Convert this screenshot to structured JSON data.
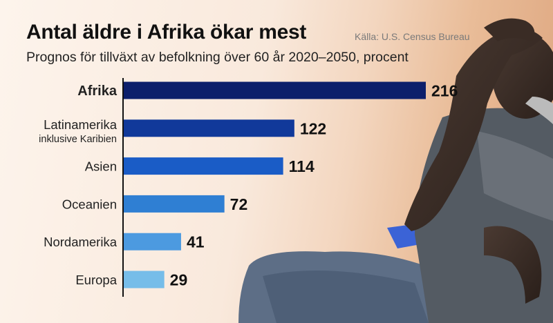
{
  "header": {
    "title": "Antal äldre i Afrika ökar mest",
    "source": "Källa: U.S. Census Bureau",
    "subtitle": "Prognos för tillväxt av befolkning över 60 år 2020–2050, procent"
  },
  "chart_data": {
    "type": "bar",
    "orientation": "horizontal",
    "categories": [
      "Afrika",
      "Latinamerika inklusive Karibien",
      "Asien",
      "Oceanien",
      "Nordamerika",
      "Europa"
    ],
    "category_lines": [
      [
        "Afrika"
      ],
      [
        "Latinamerika",
        "inklusive Karibien"
      ],
      [
        "Asien"
      ],
      [
        "Oceanien"
      ],
      [
        "Nordamerika"
      ],
      [
        "Europa"
      ]
    ],
    "values": [
      216,
      122,
      114,
      72,
      41,
      29
    ],
    "value_labels": [
      "216",
      "122",
      "114",
      "72",
      "41",
      "29"
    ],
    "highlight": "Afrika",
    "bar_colors": [
      "#0c1f6b",
      "#11399a",
      "#1a5cc6",
      "#2f7fd3",
      "#4c9ae0",
      "#76bde9"
    ],
    "grid": false,
    "legend": "none"
  }
}
